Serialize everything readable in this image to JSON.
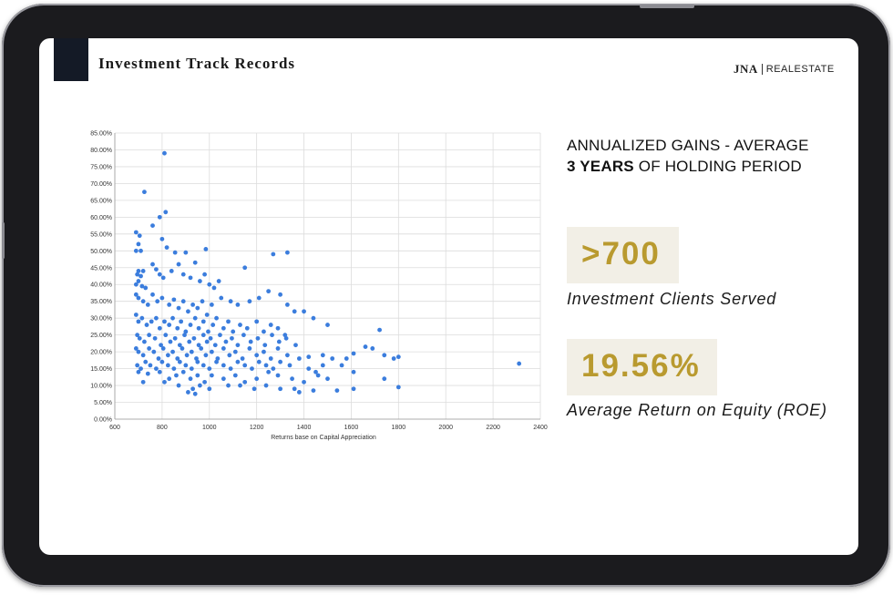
{
  "slide": {
    "title": "Investment Track Records",
    "logo": {
      "mark": "JNA",
      "text": "REALESTATE"
    }
  },
  "summary": {
    "heading_line1": "ANNUALIZED GAINS - AVERAGE",
    "heading_line2_bold": "3 YEARS",
    "heading_line2_rest": " OF HOLDING PERIOD"
  },
  "stats": [
    {
      "value": ">700",
      "label": "Investment Clients Served"
    },
    {
      "value": "19.56%",
      "label": "Average Return on Equity (ROE)"
    }
  ],
  "colors": {
    "point": "#3b7ddd",
    "accent_gold": "#b99a2f",
    "stat_bg": "#f2efe6",
    "accent_block": "#141a26"
  },
  "chart_data": {
    "type": "scatter",
    "title": "",
    "xlabel": "Returns base on Capital Appreciation",
    "ylabel": "",
    "xlim": [
      600,
      2400
    ],
    "ylim": [
      0,
      0.85
    ],
    "xticks": [
      600,
      800,
      1000,
      1200,
      1400,
      1600,
      1800,
      2000,
      2200,
      2400
    ],
    "yticks": [
      "0.00%",
      "5.00%",
      "10.00%",
      "15.00%",
      "20.00%",
      "25.00%",
      "30.00%",
      "35.00%",
      "40.00%",
      "45.00%",
      "50.00%",
      "55.00%",
      "60.00%",
      "65.00%",
      "70.00%",
      "75.00%",
      "80.00%",
      "85.00%"
    ],
    "grid": true,
    "legend": "none",
    "series": [
      {
        "points": [
          [
            810,
            0.79
          ],
          [
            725,
            0.675
          ],
          [
            790,
            0.6
          ],
          [
            760,
            0.575
          ],
          [
            815,
            0.615
          ],
          [
            690,
            0.555
          ],
          [
            705,
            0.545
          ],
          [
            700,
            0.52
          ],
          [
            690,
            0.5
          ],
          [
            710,
            0.5
          ],
          [
            800,
            0.535
          ],
          [
            820,
            0.51
          ],
          [
            855,
            0.495
          ],
          [
            900,
            0.495
          ],
          [
            985,
            0.505
          ],
          [
            940,
            0.465
          ],
          [
            1040,
            0.41
          ],
          [
            1150,
            0.45
          ],
          [
            1270,
            0.49
          ],
          [
            1330,
            0.495
          ],
          [
            700,
            0.44
          ],
          [
            695,
            0.43
          ],
          [
            710,
            0.425
          ],
          [
            720,
            0.44
          ],
          [
            700,
            0.41
          ],
          [
            690,
            0.4
          ],
          [
            715,
            0.395
          ],
          [
            730,
            0.39
          ],
          [
            760,
            0.46
          ],
          [
            775,
            0.445
          ],
          [
            790,
            0.43
          ],
          [
            805,
            0.42
          ],
          [
            840,
            0.44
          ],
          [
            870,
            0.46
          ],
          [
            890,
            0.43
          ],
          [
            920,
            0.42
          ],
          [
            960,
            0.41
          ],
          [
            980,
            0.43
          ],
          [
            1000,
            0.4
          ],
          [
            1020,
            0.39
          ],
          [
            690,
            0.37
          ],
          [
            700,
            0.36
          ],
          [
            720,
            0.35
          ],
          [
            740,
            0.34
          ],
          [
            760,
            0.37
          ],
          [
            780,
            0.35
          ],
          [
            800,
            0.36
          ],
          [
            830,
            0.34
          ],
          [
            850,
            0.355
          ],
          [
            870,
            0.33
          ],
          [
            890,
            0.35
          ],
          [
            910,
            0.32
          ],
          [
            930,
            0.34
          ],
          [
            950,
            0.33
          ],
          [
            970,
            0.35
          ],
          [
            990,
            0.31
          ],
          [
            1010,
            0.34
          ],
          [
            1050,
            0.36
          ],
          [
            1090,
            0.35
          ],
          [
            1120,
            0.34
          ],
          [
            1170,
            0.35
          ],
          [
            1210,
            0.36
          ],
          [
            1250,
            0.38
          ],
          [
            1300,
            0.37
          ],
          [
            1330,
            0.34
          ],
          [
            1360,
            0.32
          ],
          [
            1400,
            0.32
          ],
          [
            1440,
            0.3
          ],
          [
            1500,
            0.28
          ],
          [
            1720,
            0.265
          ],
          [
            690,
            0.31
          ],
          [
            700,
            0.29
          ],
          [
            715,
            0.3
          ],
          [
            735,
            0.28
          ],
          [
            755,
            0.29
          ],
          [
            775,
            0.3
          ],
          [
            790,
            0.27
          ],
          [
            810,
            0.29
          ],
          [
            830,
            0.28
          ],
          [
            845,
            0.3
          ],
          [
            865,
            0.27
          ],
          [
            880,
            0.29
          ],
          [
            900,
            0.26
          ],
          [
            920,
            0.28
          ],
          [
            940,
            0.3
          ],
          [
            955,
            0.27
          ],
          [
            975,
            0.29
          ],
          [
            995,
            0.26
          ],
          [
            1015,
            0.28
          ],
          [
            1030,
            0.3
          ],
          [
            1060,
            0.27
          ],
          [
            1080,
            0.29
          ],
          [
            1100,
            0.26
          ],
          [
            1130,
            0.28
          ],
          [
            1160,
            0.27
          ],
          [
            1200,
            0.29
          ],
          [
            1230,
            0.26
          ],
          [
            1260,
            0.28
          ],
          [
            1290,
            0.27
          ],
          [
            1320,
            0.25
          ],
          [
            695,
            0.25
          ],
          [
            705,
            0.24
          ],
          [
            725,
            0.23
          ],
          [
            745,
            0.25
          ],
          [
            770,
            0.24
          ],
          [
            795,
            0.22
          ],
          [
            815,
            0.25
          ],
          [
            835,
            0.23
          ],
          [
            855,
            0.24
          ],
          [
            875,
            0.22
          ],
          [
            895,
            0.25
          ],
          [
            915,
            0.23
          ],
          [
            935,
            0.24
          ],
          [
            955,
            0.22
          ],
          [
            975,
            0.25
          ],
          [
            990,
            0.23
          ],
          [
            1005,
            0.24
          ],
          [
            1025,
            0.22
          ],
          [
            1045,
            0.25
          ],
          [
            1070,
            0.23
          ],
          [
            1095,
            0.24
          ],
          [
            1120,
            0.22
          ],
          [
            1145,
            0.25
          ],
          [
            1175,
            0.23
          ],
          [
            1205,
            0.24
          ],
          [
            1235,
            0.22
          ],
          [
            1265,
            0.25
          ],
          [
            1295,
            0.23
          ],
          [
            1325,
            0.24
          ],
          [
            1365,
            0.22
          ],
          [
            690,
            0.21
          ],
          [
            700,
            0.2
          ],
          [
            720,
            0.19
          ],
          [
            745,
            0.21
          ],
          [
            765,
            0.2
          ],
          [
            785,
            0.18
          ],
          [
            805,
            0.21
          ],
          [
            825,
            0.19
          ],
          [
            845,
            0.2
          ],
          [
            865,
            0.18
          ],
          [
            885,
            0.21
          ],
          [
            905,
            0.19
          ],
          [
            925,
            0.2
          ],
          [
            945,
            0.18
          ],
          [
            965,
            0.21
          ],
          [
            985,
            0.19
          ],
          [
            1010,
            0.2
          ],
          [
            1035,
            0.18
          ],
          [
            1060,
            0.21
          ],
          [
            1085,
            0.19
          ],
          [
            1110,
            0.2
          ],
          [
            1140,
            0.18
          ],
          [
            1170,
            0.21
          ],
          [
            1200,
            0.19
          ],
          [
            1230,
            0.2
          ],
          [
            1260,
            0.18
          ],
          [
            1290,
            0.21
          ],
          [
            1330,
            0.19
          ],
          [
            1380,
            0.18
          ],
          [
            1420,
            0.185
          ],
          [
            1480,
            0.19
          ],
          [
            1520,
            0.18
          ],
          [
            1580,
            0.18
          ],
          [
            1610,
            0.195
          ],
          [
            1660,
            0.215
          ],
          [
            1690,
            0.21
          ],
          [
            1740,
            0.19
          ],
          [
            1780,
            0.18
          ],
          [
            1800,
            0.185
          ],
          [
            2310,
            0.165
          ],
          [
            695,
            0.16
          ],
          [
            710,
            0.15
          ],
          [
            730,
            0.17
          ],
          [
            750,
            0.16
          ],
          [
            775,
            0.15
          ],
          [
            800,
            0.17
          ],
          [
            825,
            0.16
          ],
          [
            850,
            0.15
          ],
          [
            875,
            0.17
          ],
          [
            900,
            0.16
          ],
          [
            925,
            0.15
          ],
          [
            950,
            0.17
          ],
          [
            975,
            0.16
          ],
          [
            1000,
            0.15
          ],
          [
            1030,
            0.17
          ],
          [
            1060,
            0.16
          ],
          [
            1090,
            0.15
          ],
          [
            1120,
            0.17
          ],
          [
            1150,
            0.16
          ],
          [
            1180,
            0.15
          ],
          [
            1210,
            0.17
          ],
          [
            1240,
            0.16
          ],
          [
            1270,
            0.15
          ],
          [
            1300,
            0.17
          ],
          [
            1340,
            0.16
          ],
          [
            1420,
            0.15
          ],
          [
            1450,
            0.14
          ],
          [
            1480,
            0.16
          ],
          [
            1560,
            0.16
          ],
          [
            1610,
            0.14
          ],
          [
            700,
            0.14
          ],
          [
            740,
            0.135
          ],
          [
            790,
            0.14
          ],
          [
            830,
            0.12
          ],
          [
            860,
            0.13
          ],
          [
            890,
            0.14
          ],
          [
            920,
            0.12
          ],
          [
            950,
            0.13
          ],
          [
            980,
            0.11
          ],
          [
            1010,
            0.13
          ],
          [
            1060,
            0.12
          ],
          [
            1110,
            0.13
          ],
          [
            1150,
            0.11
          ],
          [
            1200,
            0.12
          ],
          [
            1250,
            0.14
          ],
          [
            1290,
            0.13
          ],
          [
            1350,
            0.12
          ],
          [
            1400,
            0.11
          ],
          [
            1460,
            0.13
          ],
          [
            1500,
            0.12
          ],
          [
            1740,
            0.12
          ],
          [
            720,
            0.11
          ],
          [
            810,
            0.11
          ],
          [
            870,
            0.1
          ],
          [
            930,
            0.09
          ],
          [
            960,
            0.1
          ],
          [
            1000,
            0.09
          ],
          [
            1080,
            0.1
          ],
          [
            1130,
            0.1
          ],
          [
            1190,
            0.09
          ],
          [
            1240,
            0.1
          ],
          [
            1300,
            0.09
          ],
          [
            1360,
            0.09
          ],
          [
            1440,
            0.085
          ],
          [
            1540,
            0.085
          ],
          [
            1610,
            0.09
          ],
          [
            1800,
            0.095
          ],
          [
            910,
            0.08
          ],
          [
            940,
            0.075
          ],
          [
            1380,
            0.08
          ]
        ]
      }
    ]
  }
}
